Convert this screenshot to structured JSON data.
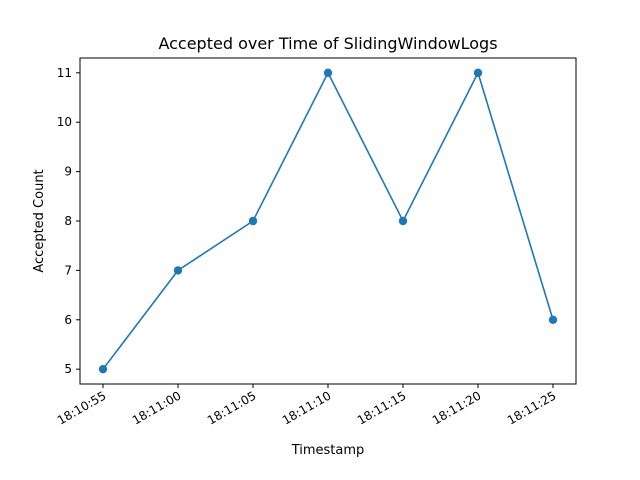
{
  "chart_data": {
    "type": "line",
    "title": "Accepted over Time of SlidingWindowLogs",
    "xlabel": "Timestamp",
    "ylabel": "Accepted Count",
    "x": [
      "18:10:55",
      "18:11:00",
      "18:11:05",
      "18:11:10",
      "18:11:15",
      "18:11:20",
      "18:11:25"
    ],
    "series": [
      {
        "values": [
          5,
          7,
          8,
          11,
          8,
          11,
          6
        ]
      }
    ],
    "yticks": [
      5,
      6,
      7,
      8,
      9,
      10,
      11
    ],
    "ylim": [
      4.7,
      11.3
    ],
    "grid": false,
    "color": "#1f77b4",
    "marker": "circle"
  }
}
